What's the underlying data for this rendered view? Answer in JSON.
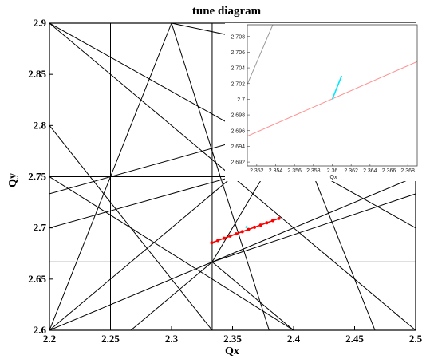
{
  "chart_data": [
    {
      "type": "line",
      "title": "tune diagram",
      "xlabel": "Qx",
      "ylabel": "Qy",
      "xlim": [
        2.2,
        2.5
      ],
      "ylim": [
        2.6,
        2.9
      ],
      "xticks": [
        "2.2",
        "2.25",
        "2.3",
        "2.35",
        "2.4",
        "2.45",
        "2.5"
      ],
      "yticks": [
        "2.6",
        "2.65",
        "2.7",
        "2.75",
        "2.8",
        "2.85",
        "2.9"
      ],
      "resonance_lines": [
        {
          "x": [
            2.25,
            2.25
          ],
          "y": [
            2.6,
            2.9
          ]
        },
        {
          "x": [
            2.3333,
            2.3333
          ],
          "y": [
            2.6,
            2.9
          ]
        },
        {
          "x": [
            2.2,
            2.5
          ],
          "y": [
            2.75,
            2.75
          ]
        },
        {
          "x": [
            2.2,
            2.5
          ],
          "y": [
            2.6667,
            2.6667
          ]
        },
        {
          "x": [
            2.2,
            2.5
          ],
          "y": [
            2.9,
            2.6
          ]
        },
        {
          "x": [
            2.2,
            2.5
          ],
          "y": [
            2.6,
            2.9
          ]
        },
        {
          "x": [
            2.2,
            2.3
          ],
          "y": [
            2.6,
            2.9
          ]
        },
        {
          "x": [
            2.2,
            2.3333
          ],
          "y": [
            2.8,
            2.6
          ]
        },
        {
          "x": [
            2.2,
            2.5
          ],
          "y": [
            2.9,
            2.7
          ]
        },
        {
          "x": [
            2.2,
            2.5
          ],
          "y": [
            2.7,
            2.8
          ]
        },
        {
          "x": [
            2.2,
            2.5
          ],
          "y": [
            2.7333,
            2.8333
          ]
        },
        {
          "x": [
            2.3,
            2.5
          ],
          "y": [
            2.9,
            2.85
          ]
        },
        {
          "x": [
            2.2,
            2.5
          ],
          "y": [
            2.6,
            2.75
          ]
        },
        {
          "x": [
            2.2,
            2.4
          ],
          "y": [
            2.75,
            2.6
          ]
        },
        {
          "x": [
            2.3,
            2.38
          ],
          "y": [
            2.9,
            2.6
          ]
        },
        {
          "x": [
            2.3333,
            2.4
          ],
          "y": [
            2.6667,
            2.6
          ]
        },
        {
          "x": [
            2.3333,
            2.4333
          ],
          "y": [
            2.6667,
            2.8667
          ]
        },
        {
          "x": [
            2.3333,
            2.2667
          ],
          "y": [
            2.6667,
            2.6
          ]
        },
        {
          "x": [
            2.4,
            2.4667
          ],
          "y": [
            2.8,
            2.6
          ]
        },
        {
          "x": [
            2.3333,
            2.5
          ],
          "y": [
            2.6667,
            2.7333
          ]
        }
      ],
      "series": [
        {
          "color": "#ff0000",
          "x": [
            2.333,
            2.338,
            2.343,
            2.348,
            2.353,
            2.358,
            2.363,
            2.368,
            2.373,
            2.378,
            2.383,
            2.388
          ],
          "y": [
            2.6855,
            2.6877,
            2.6899,
            2.692,
            2.6942,
            2.6963,
            2.6985,
            2.7006,
            2.7028,
            2.705,
            2.7071,
            2.7093
          ]
        },
        {
          "color": "#00ffff",
          "x": [
            2.3608,
            2.3618
          ],
          "y": [
            2.7,
            2.7018
          ]
        }
      ]
    },
    {
      "type": "line",
      "xlabel": "Qx",
      "xlim": [
        2.351,
        2.369
      ],
      "ylim": [
        2.6915,
        2.7095
      ],
      "xticks": [
        "2.352",
        "2.354",
        "2.356",
        "2.358",
        "2.36",
        "2.362",
        "2.364",
        "2.366",
        "2.368"
      ],
      "yticks": [
        "2.692",
        "2.694",
        "2.696",
        "2.698",
        "2.7",
        "2.702",
        "2.704",
        "2.706",
        "2.708"
      ],
      "series": [
        {
          "color": "#ff9090",
          "x": [
            2.351,
            2.369
          ],
          "y": [
            2.6953,
            2.7048
          ]
        },
        {
          "color": "#00e8ff",
          "x": [
            2.36,
            2.361
          ],
          "y": [
            2.7,
            2.703
          ]
        },
        {
          "color": "#999999",
          "x": [
            2.351,
            2.3537
          ],
          "y": [
            2.7019,
            2.7095
          ]
        }
      ]
    }
  ]
}
